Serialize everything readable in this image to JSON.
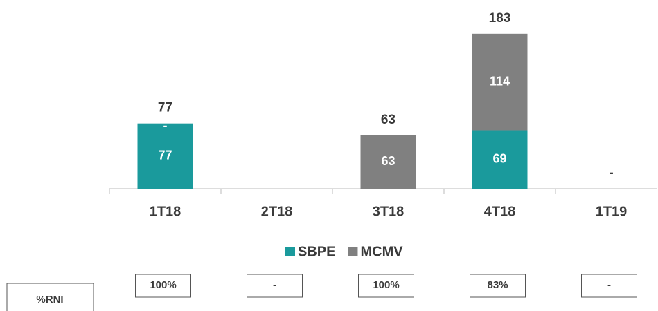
{
  "chart_data": {
    "type": "stacked-bar",
    "categories": [
      "1T18",
      "2T18",
      "3T18",
      "4T18",
      "1T19"
    ],
    "series": [
      {
        "name": "SBPE",
        "color": "#1a9a9c",
        "values": [
          77,
          null,
          null,
          69,
          null
        ]
      },
      {
        "name": "MCMV",
        "color": "#808080",
        "values": [
          0,
          null,
          63,
          114,
          null
        ],
        "value_labels": [
          "-",
          null,
          null,
          null,
          null
        ]
      }
    ],
    "totals": [
      77,
      null,
      63,
      183,
      0
    ],
    "total_labels": [
      null,
      null,
      null,
      null,
      "-"
    ],
    "ylim": [
      0,
      200
    ]
  },
  "table": {
    "header": "%RNI",
    "cells": [
      "100%",
      "-",
      "100%",
      "83%",
      "-"
    ]
  }
}
